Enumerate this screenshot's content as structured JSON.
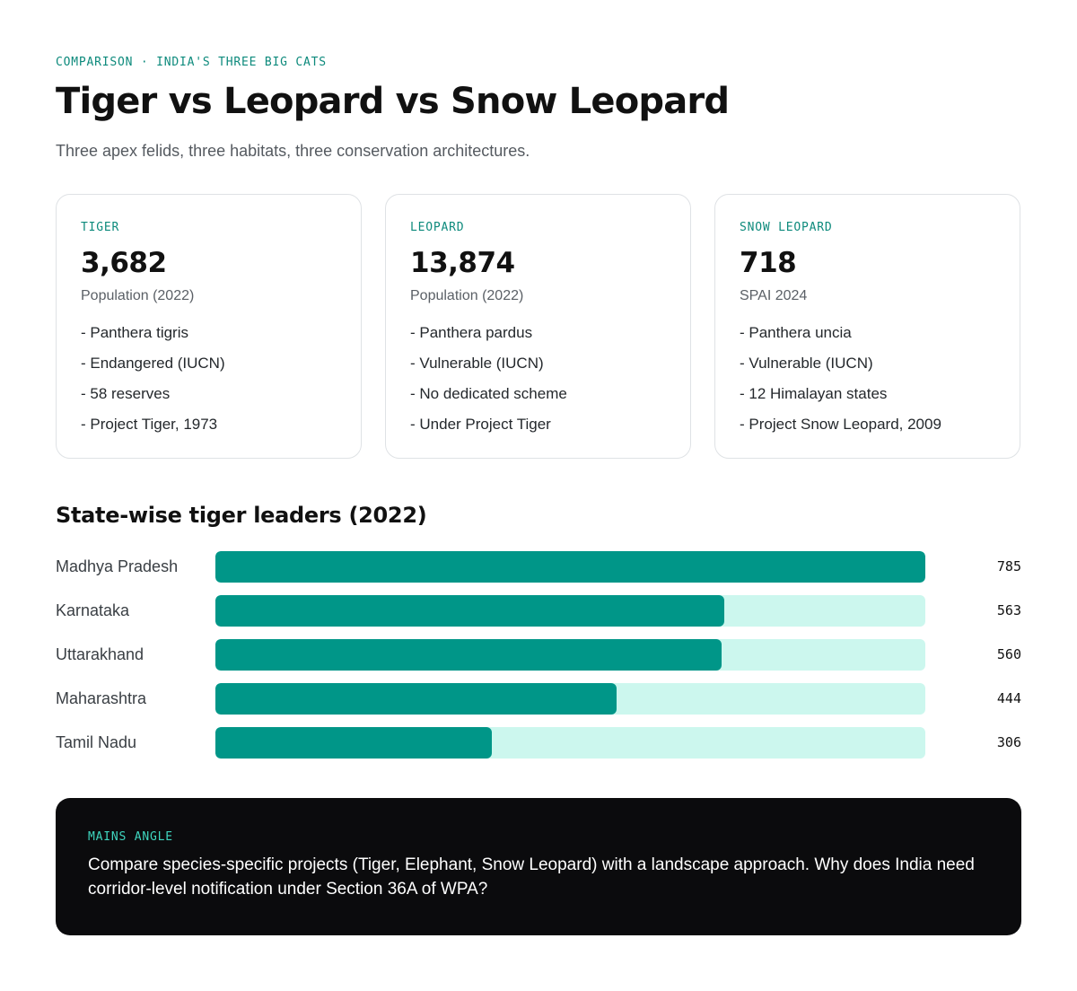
{
  "header": {
    "kicker": "COMPARISON · INDIA'S THREE BIG CATS",
    "title": "Tiger vs Leopard vs Snow Leopard",
    "subtitle": "Three apex felids, three habitats, three conservation architectures."
  },
  "cards": [
    {
      "label": "TIGER",
      "stat": "3,682",
      "stat_label": "Population (2022)",
      "facts": [
        "- Panthera tigris",
        "- Endangered (IUCN)",
        "- 58 reserves",
        "- Project Tiger, 1973"
      ]
    },
    {
      "label": "LEOPARD",
      "stat": "13,874",
      "stat_label": "Population (2022)",
      "facts": [
        "- Panthera pardus",
        "- Vulnerable (IUCN)",
        "- No dedicated scheme",
        "- Under Project Tiger"
      ]
    },
    {
      "label": "SNOW LEOPARD",
      "stat": "718",
      "stat_label": "SPAI 2024",
      "facts": [
        "- Panthera uncia",
        "- Vulnerable (IUCN)",
        "- 12 Himalayan states",
        "- Project Snow Leopard, 2009"
      ]
    }
  ],
  "chart_data": {
    "type": "bar",
    "orientation": "horizontal",
    "title": "State-wise tiger leaders (2022)",
    "categories": [
      "Madhya Pradesh",
      "Karnataka",
      "Uttarakhand",
      "Maharashtra",
      "Tamil Nadu"
    ],
    "values": [
      785,
      563,
      560,
      444,
      306
    ],
    "value_labels": [
      "785",
      "563",
      "560",
      "444",
      "306"
    ],
    "xlim": [
      0,
      785
    ],
    "grid": false,
    "colors": {
      "bar": "#009688",
      "track": "#ccf7ee"
    }
  },
  "mains": {
    "label": "MAINS ANGLE",
    "text": "Compare species-specific projects (Tiger, Elephant, Snow Leopard) with a landscape approach. Why does India need corridor-level notification under Section 36A of WPA?"
  },
  "colors": {
    "accent": "#0d8a7c",
    "dark_panel": "#0b0b0d",
    "mains_accent": "#3fd6bf"
  }
}
